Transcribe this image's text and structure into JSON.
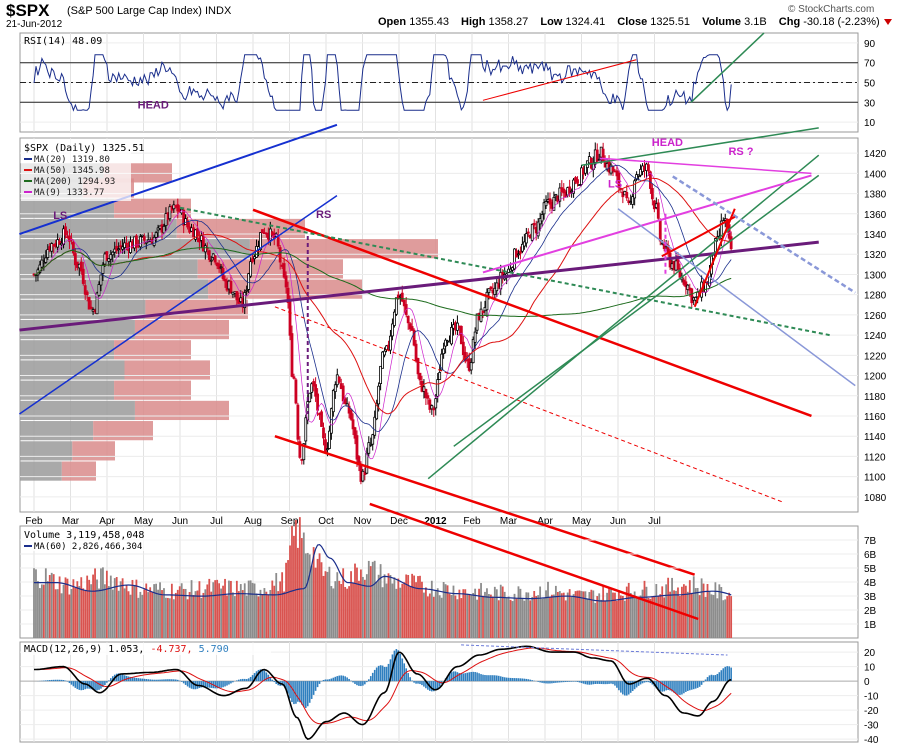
{
  "header": {
    "symbol": "$SPX",
    "description": "(S&P 500 Large Cap Index)  INDX",
    "date": "21-Jun-2012",
    "open_label": "Open",
    "open": "1355.43",
    "high_label": "High",
    "high": "1358.27",
    "low_label": "Low",
    "low": "1324.41",
    "close_label": "Close",
    "close": "1325.51",
    "volume_label": "Volume",
    "volume": "3.1B",
    "chg_label": "Chg",
    "chg": "-30.18 (-2.23%)",
    "brand": "© StockCharts.com"
  },
  "colors": {
    "up": "#000000",
    "down": "#cc0022",
    "rsi": "#1a2e8c",
    "ma20": "#1a2e8c",
    "ma50": "#dd1111",
    "ma200": "#1d6b1d",
    "ma9": "#cc22cc",
    "trend_red": "#ee0000",
    "trend_purple": "#6a1b7a",
    "trend_green": "#2e8a55",
    "trend_blue": "#1530d0",
    "trend_pink": "#e23fe0",
    "trend_steel": "#8a98d8"
  },
  "chart_data": [
    {
      "panel": "rsi",
      "type": "line",
      "label": "RSI(14) 48.09",
      "y_ticks": [
        90,
        70,
        50,
        30,
        10
      ],
      "ylim": [
        0,
        100
      ],
      "reference_lines": [
        70,
        50,
        30
      ],
      "last_value": 48.09
    },
    {
      "panel": "price",
      "type": "candlestick",
      "title": "$SPX (Daily) 1325.51",
      "x_labels": [
        "Feb",
        "Mar",
        "Apr",
        "May",
        "Jun",
        "Jul",
        "Aug",
        "Sep",
        "Oct",
        "Nov",
        "Dec",
        "2012",
        "Feb",
        "Mar",
        "Apr",
        "May",
        "Jun",
        "Jul"
      ],
      "y_ticks": [
        1420,
        1400,
        1380,
        1360,
        1340,
        1320,
        1300,
        1280,
        1260,
        1240,
        1220,
        1200,
        1180,
        1160,
        1140,
        1120,
        1100,
        1080
      ],
      "ylim": [
        1065,
        1435
      ],
      "legend": [
        {
          "name": "MA(20) 1319.80",
          "color": "#1a2e8c"
        },
        {
          "name": "MA(50) 1345.98",
          "color": "#dd1111"
        },
        {
          "name": "MA(200) 1294.93",
          "color": "#1d6b1d"
        },
        {
          "name": "MA(9) 1333.77",
          "color": "#cc22cc"
        }
      ],
      "annotations": [
        "HEAD",
        "LS",
        "RS",
        "HEAD",
        "LS",
        "RS ?"
      ],
      "anchor_prices": [
        {
          "month": 0.0,
          "price": 1300
        },
        {
          "month": 0.5,
          "price": 1330
        },
        {
          "month": 0.9,
          "price": 1340
        },
        {
          "month": 1.2,
          "price": 1310
        },
        {
          "month": 1.6,
          "price": 1265
        },
        {
          "month": 2.0,
          "price": 1320
        },
        {
          "month": 2.6,
          "price": 1330
        },
        {
          "month": 3.2,
          "price": 1335
        },
        {
          "month": 3.9,
          "price": 1365
        },
        {
          "month": 4.3,
          "price": 1345
        },
        {
          "month": 4.9,
          "price": 1320
        },
        {
          "month": 5.3,
          "price": 1290
        },
        {
          "month": 5.7,
          "price": 1270
        },
        {
          "month": 6.0,
          "price": 1320
        },
        {
          "month": 6.3,
          "price": 1345
        },
        {
          "month": 6.6,
          "price": 1335
        },
        {
          "month": 6.9,
          "price": 1290
        },
        {
          "month": 7.1,
          "price": 1200
        },
        {
          "month": 7.3,
          "price": 1120
        },
        {
          "month": 7.6,
          "price": 1190
        },
        {
          "month": 8.0,
          "price": 1130
        },
        {
          "month": 8.3,
          "price": 1200
        },
        {
          "month": 8.6,
          "price": 1165
        },
        {
          "month": 9.0,
          "price": 1100
        },
        {
          "month": 9.2,
          "price": 1130
        },
        {
          "month": 9.6,
          "price": 1220
        },
        {
          "month": 10.0,
          "price": 1280
        },
        {
          "month": 10.3,
          "price": 1250
        },
        {
          "month": 10.6,
          "price": 1190
        },
        {
          "month": 10.9,
          "price": 1165
        },
        {
          "month": 11.3,
          "price": 1240
        },
        {
          "month": 11.6,
          "price": 1245
        },
        {
          "month": 11.9,
          "price": 1210
        },
        {
          "month": 12.2,
          "price": 1260
        },
        {
          "month": 12.5,
          "price": 1280
        },
        {
          "month": 12.9,
          "price": 1300
        },
        {
          "month": 13.3,
          "price": 1325
        },
        {
          "month": 13.7,
          "price": 1345
        },
        {
          "month": 14.1,
          "price": 1370
        },
        {
          "month": 14.5,
          "price": 1380
        },
        {
          "month": 14.9,
          "price": 1395
        },
        {
          "month": 15.2,
          "price": 1410
        },
        {
          "month": 15.5,
          "price": 1420
        },
        {
          "month": 15.8,
          "price": 1405
        },
        {
          "month": 16.1,
          "price": 1385
        },
        {
          "month": 16.3,
          "price": 1365
        },
        {
          "month": 16.5,
          "price": 1400
        },
        {
          "month": 16.8,
          "price": 1405
        },
        {
          "month": 17.0,
          "price": 1370
        },
        {
          "month": 17.2,
          "price": 1330
        },
        {
          "month": 17.5,
          "price": 1310
        },
        {
          "month": 17.8,
          "price": 1295
        },
        {
          "month": 18.1,
          "price": 1275
        },
        {
          "month": 18.4,
          "price": 1290
        },
        {
          "month": 18.7,
          "price": 1330
        },
        {
          "month": 18.9,
          "price": 1355
        },
        {
          "month": 19.1,
          "price": 1325
        }
      ],
      "volume_by_price": [
        {
          "price": 1345,
          "length": 0.75
        },
        {
          "price": 1325,
          "length": 1.1
        },
        {
          "price": 1305,
          "length": 0.85
        },
        {
          "price": 1285,
          "length": 0.9
        },
        {
          "price": 1265,
          "length": 0.6
        },
        {
          "price": 1245,
          "length": 0.55
        },
        {
          "price": 1225,
          "length": 0.45
        },
        {
          "price": 1205,
          "length": 0.5
        },
        {
          "price": 1185,
          "length": 0.45
        },
        {
          "price": 1165,
          "length": 0.55
        },
        {
          "price": 1145,
          "length": 0.35
        },
        {
          "price": 1125,
          "length": 0.25
        },
        {
          "price": 1105,
          "length": 0.2
        },
        {
          "price": 1400,
          "length": 0.4
        },
        {
          "price": 1385,
          "length": 0.3
        },
        {
          "price": 1365,
          "length": 0.45
        }
      ]
    },
    {
      "panel": "volume",
      "type": "bar",
      "label": "Volume 3,119,458,048",
      "ma_label": "MA(60) 2,826,466,304",
      "y_ticks": [
        "7B",
        "6B",
        "5B",
        "4B",
        "3B",
        "2B",
        "1B"
      ],
      "ylim": [
        0,
        8
      ],
      "anchors_billions": [
        {
          "month": 0.0,
          "value": 4.5
        },
        {
          "month": 1.0,
          "value": 3.8
        },
        {
          "month": 2.0,
          "value": 4.3
        },
        {
          "month": 3.0,
          "value": 3.5
        },
        {
          "month": 4.0,
          "value": 3.4
        },
        {
          "month": 5.0,
          "value": 3.6
        },
        {
          "month": 6.0,
          "value": 3.5
        },
        {
          "month": 6.8,
          "value": 4.0
        },
        {
          "month": 7.2,
          "value": 7.6
        },
        {
          "month": 7.5,
          "value": 6.5
        },
        {
          "month": 8.0,
          "value": 4.5
        },
        {
          "month": 8.6,
          "value": 4.2
        },
        {
          "month": 9.0,
          "value": 5.0
        },
        {
          "month": 10.0,
          "value": 4.0
        },
        {
          "month": 11.0,
          "value": 3.6
        },
        {
          "month": 12.0,
          "value": 3.3
        },
        {
          "month": 13.0,
          "value": 3.2
        },
        {
          "month": 14.0,
          "value": 3.4
        },
        {
          "month": 15.0,
          "value": 3.0
        },
        {
          "month": 16.0,
          "value": 3.3
        },
        {
          "month": 17.0,
          "value": 3.5
        },
        {
          "month": 18.0,
          "value": 3.8
        },
        {
          "month": 19.1,
          "value": 3.1
        }
      ]
    },
    {
      "panel": "macd",
      "type": "line",
      "label_prefix": "MACD(12,26,9)",
      "macd_value": "1.053",
      "signal_value": "-4.737",
      "hist_value": "5.790",
      "y_ticks": [
        20,
        10,
        0,
        -10,
        -20,
        -30,
        -40
      ],
      "ylim": [
        -42,
        27
      ],
      "macd_anchors": [
        {
          "month": 0.0,
          "value": 8
        },
        {
          "month": 0.8,
          "value": 10
        },
        {
          "month": 1.4,
          "value": -2
        },
        {
          "month": 1.8,
          "value": -8
        },
        {
          "month": 2.4,
          "value": 5
        },
        {
          "month": 3.2,
          "value": 6
        },
        {
          "month": 3.9,
          "value": 8
        },
        {
          "month": 4.5,
          "value": -3
        },
        {
          "month": 5.2,
          "value": -10
        },
        {
          "month": 5.8,
          "value": -5
        },
        {
          "month": 6.3,
          "value": 8
        },
        {
          "month": 6.8,
          "value": -2
        },
        {
          "month": 7.2,
          "value": -25
        },
        {
          "month": 7.5,
          "value": -40
        },
        {
          "month": 8.0,
          "value": -28
        },
        {
          "month": 8.5,
          "value": -22
        },
        {
          "month": 9.0,
          "value": -30
        },
        {
          "month": 9.6,
          "value": -8
        },
        {
          "month": 10.0,
          "value": 20
        },
        {
          "month": 10.5,
          "value": 5
        },
        {
          "month": 11.0,
          "value": -6
        },
        {
          "month": 11.6,
          "value": 10
        },
        {
          "month": 12.2,
          "value": 18
        },
        {
          "month": 12.8,
          "value": 22
        },
        {
          "month": 13.5,
          "value": 24
        },
        {
          "month": 14.2,
          "value": 20
        },
        {
          "month": 14.8,
          "value": 20
        },
        {
          "month": 15.3,
          "value": 16
        },
        {
          "month": 15.8,
          "value": 14
        },
        {
          "month": 16.3,
          "value": -2
        },
        {
          "month": 16.8,
          "value": 2
        },
        {
          "month": 17.3,
          "value": -10
        },
        {
          "month": 17.8,
          "value": -22
        },
        {
          "month": 18.2,
          "value": -24
        },
        {
          "month": 18.6,
          "value": -14
        },
        {
          "month": 19.1,
          "value": 1
        }
      ]
    }
  ]
}
